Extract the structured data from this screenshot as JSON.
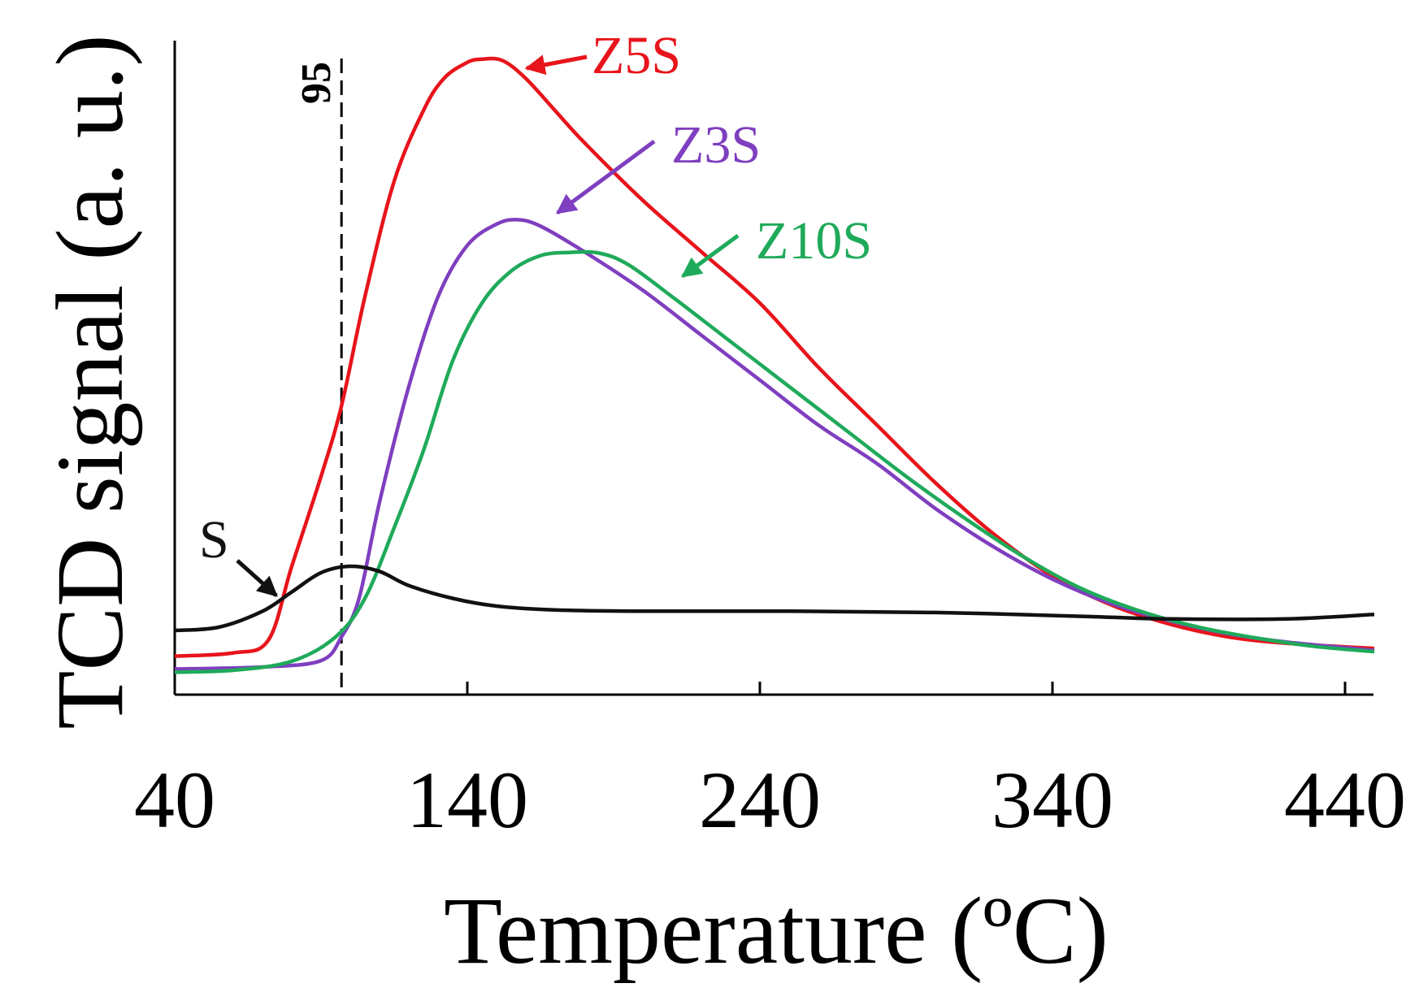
{
  "chart_data": {
    "type": "line",
    "title": "",
    "xlabel": "Temperature (ºC)",
    "ylabel": "TCD signal (a. u.)",
    "xlim": [
      40,
      450
    ],
    "ylim": [
      0,
      100
    ],
    "x_ticks": [
      40,
      140,
      240,
      340,
      440
    ],
    "y_ticks_shown": false,
    "grid": false,
    "reference_line": {
      "x": 97,
      "label": "95",
      "style": "dashed"
    },
    "series": [
      {
        "name": "Z5S",
        "color": "#e8141b",
        "points": [
          [
            40,
            6
          ],
          [
            60,
            6.5
          ],
          [
            72,
            8.5
          ],
          [
            80,
            20
          ],
          [
            90,
            34
          ],
          [
            97,
            45
          ],
          [
            105,
            62
          ],
          [
            115,
            80
          ],
          [
            125,
            91
          ],
          [
            132,
            96
          ],
          [
            140,
            98.5
          ],
          [
            145,
            99
          ],
          [
            152,
            98.8
          ],
          [
            160,
            96
          ],
          [
            170,
            91
          ],
          [
            180,
            86
          ],
          [
            200,
            77
          ],
          [
            220,
            69
          ],
          [
            240,
            61
          ],
          [
            260,
            51
          ],
          [
            280,
            42
          ],
          [
            300,
            33
          ],
          [
            320,
            25
          ],
          [
            340,
            18.5
          ],
          [
            360,
            14
          ],
          [
            380,
            11
          ],
          [
            400,
            9
          ],
          [
            420,
            8
          ],
          [
            450,
            7.2
          ]
        ]
      },
      {
        "name": "Z3S",
        "color": "#7f3fbf",
        "points": [
          [
            40,
            4
          ],
          [
            70,
            4.3
          ],
          [
            90,
            5.3
          ],
          [
            97,
            9
          ],
          [
            103,
            15
          ],
          [
            110,
            30
          ],
          [
            120,
            48
          ],
          [
            130,
            62
          ],
          [
            140,
            70
          ],
          [
            150,
            73.3
          ],
          [
            157,
            74
          ],
          [
            165,
            73
          ],
          [
            180,
            69
          ],
          [
            200,
            63
          ],
          [
            220,
            56
          ],
          [
            240,
            49
          ],
          [
            260,
            42
          ],
          [
            280,
            36
          ],
          [
            300,
            29
          ],
          [
            320,
            23
          ],
          [
            340,
            18
          ],
          [
            360,
            14.2
          ],
          [
            380,
            11.5
          ],
          [
            400,
            9.5
          ],
          [
            420,
            8.2
          ],
          [
            450,
            6.9
          ]
        ]
      },
      {
        "name": "Z10S",
        "color": "#1faa5a",
        "points": [
          [
            40,
            3.5
          ],
          [
            60,
            3.8
          ],
          [
            80,
            5.2
          ],
          [
            95,
            9
          ],
          [
            105,
            15
          ],
          [
            115,
            26
          ],
          [
            125,
            38
          ],
          [
            135,
            52
          ],
          [
            145,
            61
          ],
          [
            155,
            66
          ],
          [
            165,
            68.4
          ],
          [
            175,
            68.9
          ],
          [
            185,
            68.8
          ],
          [
            195,
            67
          ],
          [
            210,
            62
          ],
          [
            230,
            55
          ],
          [
            250,
            48
          ],
          [
            270,
            41
          ],
          [
            290,
            34
          ],
          [
            310,
            27.5
          ],
          [
            330,
            21.5
          ],
          [
            350,
            16.5
          ],
          [
            370,
            13
          ],
          [
            390,
            10.5
          ],
          [
            410,
            8.8
          ],
          [
            430,
            7.5
          ],
          [
            450,
            6.7
          ]
        ]
      },
      {
        "name": "S",
        "color": "#111111",
        "points": [
          [
            40,
            10
          ],
          [
            55,
            10.5
          ],
          [
            70,
            13
          ],
          [
            80,
            16
          ],
          [
            90,
            19
          ],
          [
            100,
            20
          ],
          [
            110,
            19.2
          ],
          [
            120,
            17
          ],
          [
            135,
            15
          ],
          [
            150,
            13.8
          ],
          [
            170,
            13.2
          ],
          [
            200,
            13
          ],
          [
            250,
            13
          ],
          [
            300,
            12.8
          ],
          [
            350,
            12.2
          ],
          [
            380,
            11.8
          ],
          [
            420,
            11.8
          ],
          [
            450,
            12.5
          ]
        ]
      }
    ],
    "annotations": [
      {
        "text": "Z5S",
        "color": "#e8141b",
        "arrow_to": {
          "x": 150,
          "y": 99
        }
      },
      {
        "text": "Z3S",
        "color": "#7f3fbf",
        "arrow_to": {
          "x": 166,
          "y": 72.5
        }
      },
      {
        "text": "Z10S",
        "color": "#1faa5a",
        "arrow_to": {
          "x": 212,
          "y": 64
        }
      },
      {
        "text": "S",
        "color": "#111111",
        "arrow_to": {
          "x": 74,
          "y": 15
        }
      }
    ]
  }
}
